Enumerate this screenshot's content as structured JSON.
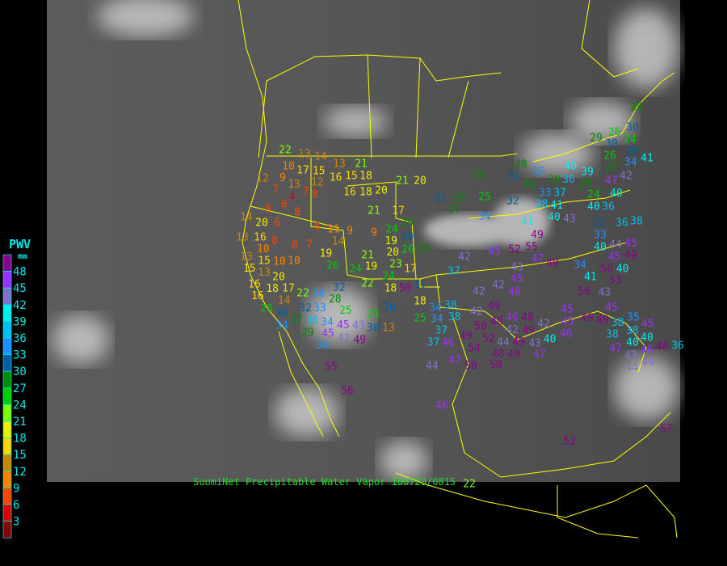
{
  "legend": {
    "title": "PWV",
    "unit": "mm",
    "ticks": [
      "48",
      "45",
      "42",
      "39",
      "36",
      "33",
      "30",
      "27",
      "24",
      "21",
      "18",
      "15",
      "12",
      "9",
      "6",
      "3"
    ],
    "colors": [
      "#8b008b",
      "#9b30ff",
      "#8470cc",
      "#00eeee",
      "#00bfee",
      "#1e90ff",
      "#005f9f",
      "#008b00",
      "#00cd00",
      "#7fff00",
      "#eeee00",
      "#ffd700",
      "#cd8500",
      "#ff8000",
      "#ff4500",
      "#dd0000",
      "#8b0000"
    ]
  },
  "caption": "SuomiNet Precipitable Water Vapor 100720/0815",
  "colors": {
    "boundaries": "#ffff00",
    "label_text": "#00e8e8",
    "caption": "#22dd22"
  },
  "stations": [
    22,
    13,
    14,
    13,
    21,
    10,
    17,
    15,
    12,
    16,
    15,
    18,
    12,
    9,
    13,
    7,
    7,
    8,
    4,
    6,
    8,
    16,
    18,
    20,
    21,
    20,
    21,
    17,
    8,
    14,
    20,
    6,
    6,
    11,
    9,
    9,
    24,
    29,
    30,
    16,
    13,
    8,
    14,
    8,
    7,
    10,
    19,
    19,
    20,
    26,
    29,
    15,
    10,
    10,
    13,
    15,
    13,
    21,
    26,
    24,
    19,
    23,
    24,
    17,
    16,
    20,
    22,
    18,
    32,
    16,
    18,
    17,
    14,
    22,
    34,
    28,
    26,
    33,
    30,
    32,
    25,
    30,
    25,
    34,
    27,
    38,
    29,
    34,
    45,
    45,
    43,
    34,
    42,
    49,
    30,
    13,
    18,
    34,
    25,
    31,
    28,
    30,
    29,
    30,
    26,
    24,
    30,
    26,
    27,
    34,
    41,
    28,
    35,
    29,
    31,
    29,
    29,
    33,
    37,
    36,
    39,
    40,
    28,
    42,
    47,
    40,
    31,
    29,
    25,
    32,
    38,
    41,
    24,
    27,
    40,
    40,
    36,
    34,
    43,
    41,
    32,
    33,
    36,
    38,
    49,
    55,
    52,
    45,
    42,
    40,
    44,
    45,
    45,
    47,
    49,
    49,
    40,
    50,
    53,
    34,
    41,
    37,
    43,
    45,
    42,
    46,
    50,
    42,
    50,
    43,
    49,
    34,
    38,
    38,
    42,
    45,
    45,
    48,
    46,
    48,
    42,
    49,
    50,
    42,
    45,
    49,
    49,
    38,
    35,
    38,
    38,
    45,
    40,
    37,
    46,
    49,
    52,
    44,
    49,
    43,
    40,
    46,
    37,
    47,
    40,
    46,
    54,
    48,
    49,
    47,
    48,
    43,
    44,
    44,
    50,
    47,
    44,
    50,
    36,
    46,
    55,
    56,
    52,
    57,
    22
  ]
}
